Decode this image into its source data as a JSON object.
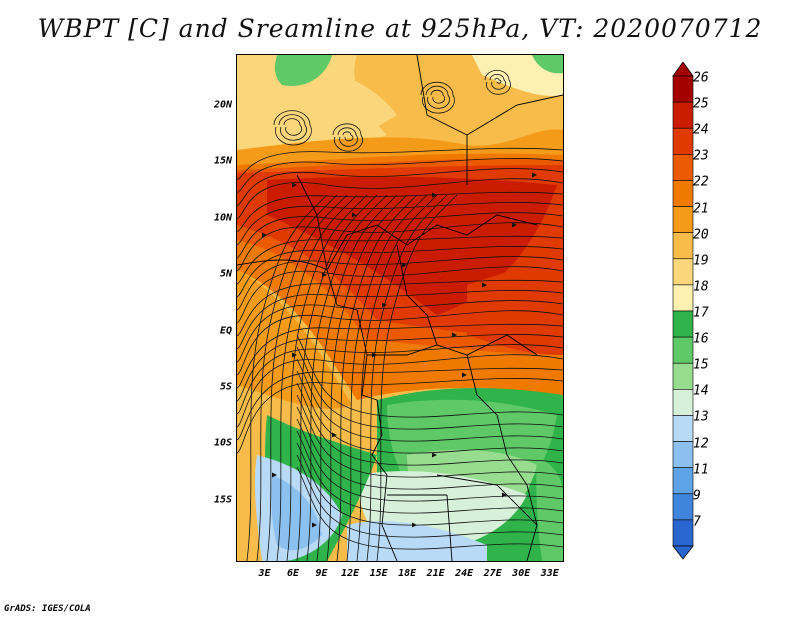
{
  "title": "WBPT [C] and Sreamline at 925hPa, VT: 2020070712",
  "footer": "GrADS: IGES/COLA",
  "lat_labels": [
    "20N",
    "15N",
    "10N",
    "5N",
    "EQ",
    "5S",
    "10S",
    "15S"
  ],
  "lat_values": [
    20,
    15,
    10,
    5,
    0,
    -5,
    -10,
    -15
  ],
  "lon_labels": [
    "3E",
    "6E",
    "9E",
    "12E",
    "15E",
    "18E",
    "21E",
    "24E",
    "27E",
    "30E",
    "33E"
  ],
  "lon_values": [
    3,
    6,
    9,
    12,
    15,
    18,
    21,
    24,
    27,
    30,
    33
  ],
  "colorbar": {
    "labels": [
      "26",
      "25",
      "24",
      "23",
      "22",
      "21",
      "20",
      "19",
      "18",
      "17",
      "16",
      "15",
      "14",
      "13",
      "12",
      "11",
      "9",
      "7"
    ],
    "colors": [
      "#a50000",
      "#cc1c00",
      "#e03a00",
      "#ec5a00",
      "#f07a00",
      "#f59b1a",
      "#f7bc4a",
      "#fbd67a",
      "#fdf0b0",
      "#2fb34a",
      "#5fc867",
      "#98dc90",
      "#d6f0da",
      "#b8daf6",
      "#8cc1ef",
      "#5ea3e6",
      "#3f85db",
      "#2a66d0"
    ],
    "top_color": "#a50000",
    "bottom_color": "#2a66d0"
  },
  "field_colors": {
    "c_26": "#b80a00",
    "c_25": "#cc1c00",
    "c_24": "#e03a00",
    "c_23": "#ec5a00",
    "c_22": "#f07a00",
    "c_21": "#f59b1a",
    "c_20": "#f7bc4a",
    "c_19": "#fbd67a",
    "c_18": "#fdf0b0",
    "c_17": "#2fb34a",
    "c_16": "#5fc867",
    "c_15": "#98dc90",
    "c_14": "#d6f0da",
    "c_13": "#b8daf6",
    "c_12": "#8cc1ef",
    "c_11": "#5ea3e6"
  }
}
